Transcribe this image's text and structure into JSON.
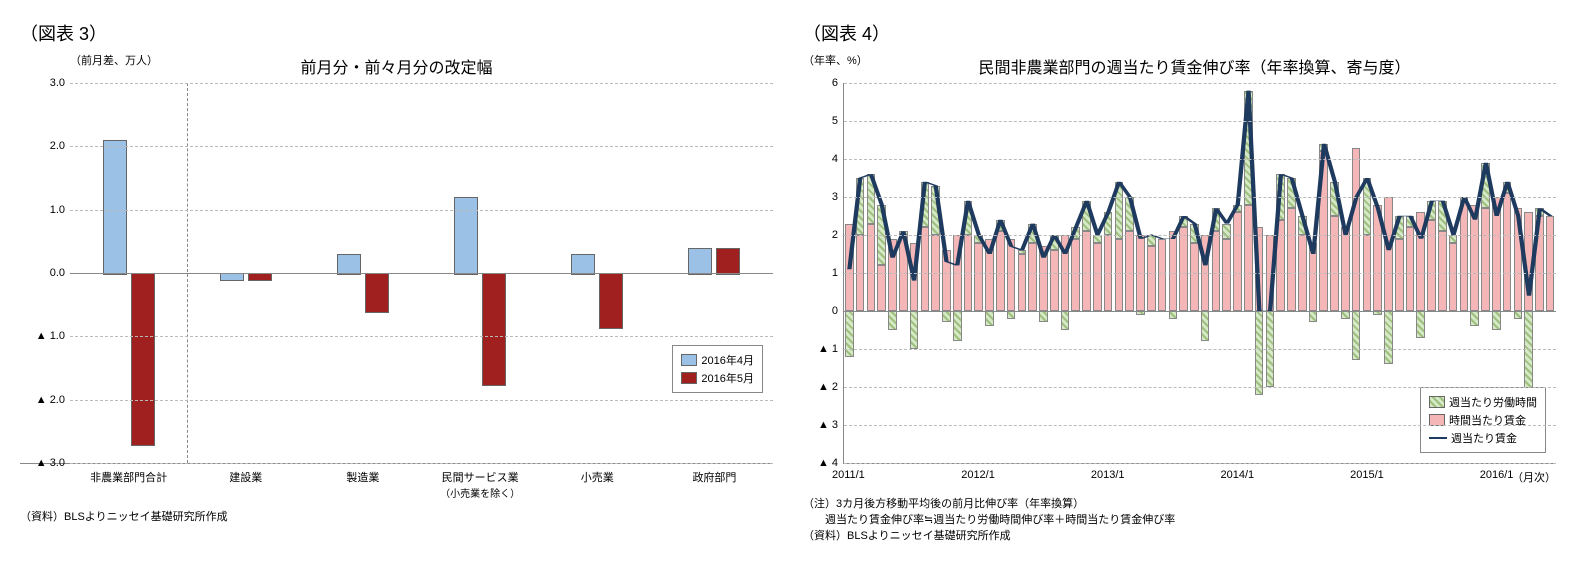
{
  "chart3": {
    "figure_label": "（図表 3）",
    "title": "前月分・前々月分の改定幅",
    "y_axis_label": "（前月差、万人）",
    "ymin": -3.0,
    "ymax": 3.0,
    "ytick_step": 1.0,
    "negative_prefix": "▲ ",
    "categories": [
      {
        "label": "非農業部門合計",
        "sub": ""
      },
      {
        "label": "建設業",
        "sub": ""
      },
      {
        "label": "製造業",
        "sub": ""
      },
      {
        "label": "民間サービス業",
        "sub": "（小売業を除く）"
      },
      {
        "label": "小売業",
        "sub": ""
      },
      {
        "label": "政府部門",
        "sub": ""
      }
    ],
    "series": [
      {
        "name": "2016年4月",
        "color": "#9bc2e6",
        "values": [
          2.1,
          -0.1,
          0.3,
          1.2,
          0.3,
          0.4
        ]
      },
      {
        "name": "2016年5月",
        "color": "#a02020",
        "values": [
          -2.7,
          -0.1,
          -0.6,
          -1.75,
          -0.85,
          0.4
        ]
      }
    ],
    "vdash_after_index": 0,
    "source": "（資料）BLSよりニッセイ基礎研究所作成",
    "grid_color": "#bbbbbb",
    "background": "#ffffff"
  },
  "chart4": {
    "figure_label": "（図表 4）",
    "title": "民間非農業部門の週当たり賃金伸び率（年率換算、寄与度）",
    "y_axis_label": "（年率、%）",
    "ymin": -4,
    "ymax": 6,
    "ytick_step": 1,
    "negative_prefix": "▲ ",
    "x_labels": [
      "2011/1",
      "2012/1",
      "2013/1",
      "2014/1",
      "2015/1",
      "2016/1"
    ],
    "x_tick_positions": [
      0,
      12,
      24,
      36,
      48,
      60
    ],
    "n_points": 66,
    "legend": [
      {
        "label": "週当たり労働時間",
        "type": "bar",
        "color": "#d6e9c6",
        "pattern": "diag"
      },
      {
        "label": "時間当たり賃金",
        "type": "bar",
        "color": "#f4b6b6"
      },
      {
        "label": "週当たり賃金",
        "type": "line",
        "color": "#1f3a5f"
      }
    ],
    "hours": [
      -1.2,
      1.5,
      1.3,
      1.6,
      -0.5,
      0.1,
      -1.0,
      1.2,
      1.3,
      -0.3,
      -0.8,
      0.9,
      0.2,
      -0.4,
      0.3,
      -0.2,
      0.1,
      0.5,
      -0.3,
      0.4,
      -0.5,
      0.3,
      0.8,
      0.2,
      0.6,
      1.5,
      0.9,
      -0.1,
      0.3,
      0.0,
      -0.2,
      0.3,
      0.5,
      -0.8,
      0.6,
      0.4,
      0.2,
      3.0,
      -2.2,
      -2.0,
      1.2,
      0.8,
      0.5,
      -0.3,
      0.2,
      0.9,
      -0.2,
      -1.3,
      1.5,
      -0.1,
      -1.4,
      0.6,
      0.3,
      -0.7,
      0.5,
      0.8,
      0.2,
      0.1,
      -0.4,
      1.2,
      -0.5,
      0.3,
      -0.2,
      -2.2,
      0.2,
      0.0
    ],
    "wages": [
      2.3,
      2.0,
      2.3,
      1.2,
      1.9,
      2.0,
      1.8,
      2.2,
      2.0,
      1.6,
      2.0,
      2.0,
      1.8,
      1.9,
      2.1,
      1.9,
      1.5,
      1.8,
      1.7,
      1.6,
      2.0,
      1.9,
      2.1,
      1.8,
      2.0,
      1.9,
      2.1,
      2.0,
      1.7,
      1.9,
      2.1,
      2.2,
      1.8,
      2.0,
      2.1,
      1.9,
      2.6,
      2.8,
      2.2,
      2.0,
      2.4,
      2.7,
      2.0,
      1.8,
      4.2,
      2.5,
      2.2,
      4.3,
      2.0,
      2.8,
      3.0,
      1.9,
      2.2,
      2.6,
      2.4,
      2.1,
      1.8,
      2.9,
      2.8,
      2.7,
      3.0,
      3.1,
      2.7,
      2.6,
      2.5,
      2.5
    ],
    "line": [
      1.1,
      3.5,
      3.6,
      2.8,
      1.4,
      2.1,
      0.8,
      3.4,
      3.3,
      1.3,
      1.2,
      2.9,
      2.0,
      1.5,
      2.4,
      1.7,
      1.6,
      2.3,
      1.4,
      2.0,
      1.5,
      2.2,
      2.9,
      2.0,
      2.6,
      3.4,
      3.0,
      1.9,
      2.0,
      1.9,
      1.9,
      2.5,
      2.3,
      1.2,
      2.7,
      2.3,
      2.8,
      5.8,
      0.0,
      0.0,
      3.6,
      3.5,
      2.5,
      1.5,
      4.4,
      3.4,
      2.0,
      3.0,
      3.5,
      2.7,
      1.6,
      2.5,
      2.5,
      1.9,
      2.9,
      2.9,
      2.0,
      3.0,
      2.4,
      3.9,
      2.5,
      3.4,
      2.5,
      0.4,
      2.7,
      2.5
    ],
    "note1": "（注）3カ月後方移動平均後の前月比伸び率（年率換算）",
    "note2": "　　週当たり賃金伸び率≒週当たり労働時間伸び率＋時間当たり賃金伸び率",
    "source": "（資料）BLSよりニッセイ基礎研究所作成",
    "x_unit": "（月次）",
    "grid_color": "#c8c8c8",
    "background": "#ffffff"
  }
}
